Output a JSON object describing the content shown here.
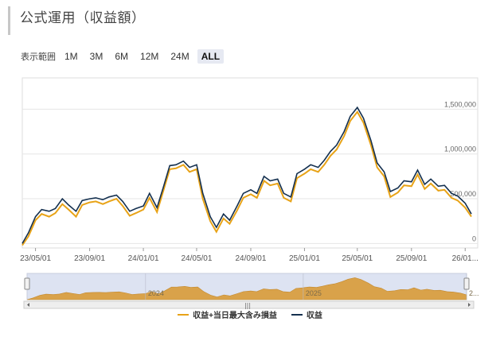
{
  "page": {
    "title": "公式運用（収益額）"
  },
  "range_selector": {
    "label": "表示範囲",
    "buttons": [
      {
        "label": "1M",
        "active": false
      },
      {
        "label": "3M",
        "active": false
      },
      {
        "label": "6M",
        "active": false
      },
      {
        "label": "12M",
        "active": false
      },
      {
        "label": "24M",
        "active": false
      },
      {
        "label": "ALL",
        "active": true
      }
    ]
  },
  "colors": {
    "profit_line": "#14304f",
    "profit_with_loss_line": "#e8a317",
    "navigator_fill": "#d9a24a",
    "navigator_bg": "#dde3f2",
    "grid": "#e6e6e6"
  },
  "legend": [
    {
      "name": "収益+当日最大含み損益",
      "color": "#e8a317"
    },
    {
      "name": "収益",
      "color": "#14304f"
    }
  ],
  "navigator": {
    "labels": [
      "2024",
      "2025",
      "2..."
    ]
  },
  "chart_data": {
    "type": "line",
    "title": "",
    "xlabel": "",
    "ylabel": "",
    "x_ticks": [
      "23/05/01",
      "23/09/01",
      "24/01/01",
      "24/05/01",
      "24/09/01",
      "25/01/01",
      "25/05/01",
      "25/09/01",
      "26/01..."
    ],
    "y_ticks": [
      "0",
      "500,000",
      "1,000,000",
      "1,500,000"
    ],
    "ylim": [
      -50000,
      1850000
    ],
    "grid": true,
    "x": [
      "2023-04-01",
      "2023-04-15",
      "2023-05-01",
      "2023-05-15",
      "2023-06-01",
      "2023-06-15",
      "2023-07-01",
      "2023-07-15",
      "2023-08-01",
      "2023-08-15",
      "2023-09-01",
      "2023-09-15",
      "2023-10-01",
      "2023-10-15",
      "2023-11-01",
      "2023-11-15",
      "2023-12-01",
      "2023-12-15",
      "2024-01-01",
      "2024-01-15",
      "2024-02-01",
      "2024-02-15",
      "2024-03-01",
      "2024-03-15",
      "2024-04-01",
      "2024-04-15",
      "2024-05-01",
      "2024-05-15",
      "2024-06-01",
      "2024-06-15",
      "2024-07-01",
      "2024-07-15",
      "2024-08-01",
      "2024-08-15",
      "2024-09-01",
      "2024-09-15",
      "2024-10-01",
      "2024-10-15",
      "2024-11-01",
      "2024-11-15",
      "2024-12-01",
      "2024-12-15",
      "2025-01-01",
      "2025-01-15",
      "2025-02-01",
      "2025-02-15",
      "2025-03-01",
      "2025-03-15",
      "2025-04-01",
      "2025-04-15",
      "2025-05-01",
      "2025-05-15",
      "2025-06-01",
      "2025-06-15",
      "2025-07-01",
      "2025-07-15",
      "2025-08-01",
      "2025-08-15",
      "2025-09-01",
      "2025-09-15",
      "2025-10-01",
      "2025-10-15",
      "2025-11-01",
      "2025-11-15",
      "2025-12-01",
      "2025-12-15",
      "2026-01-01",
      "2026-01-15"
    ],
    "series": [
      {
        "name": "収益",
        "values": [
          0,
          120000,
          300000,
          380000,
          360000,
          390000,
          500000,
          430000,
          360000,
          480000,
          500000,
          510000,
          490000,
          520000,
          540000,
          470000,
          360000,
          390000,
          420000,
          560000,
          400000,
          620000,
          870000,
          880000,
          920000,
          850000,
          880000,
          560000,
          300000,
          180000,
          330000,
          260000,
          420000,
          560000,
          600000,
          560000,
          750000,
          700000,
          720000,
          560000,
          520000,
          780000,
          830000,
          880000,
          850000,
          930000,
          1030000,
          1100000,
          1250000,
          1420000,
          1520000,
          1400000,
          1150000,
          900000,
          800000,
          580000,
          620000,
          700000,
          690000,
          820000,
          660000,
          720000,
          640000,
          650000,
          560000,
          530000,
          450000,
          330000
        ]
      },
      {
        "name": "収益+当日最大含み損益",
        "values": [
          -20000,
          80000,
          260000,
          330000,
          300000,
          340000,
          440000,
          380000,
          300000,
          430000,
          460000,
          470000,
          440000,
          470000,
          500000,
          420000,
          310000,
          340000,
          380000,
          510000,
          350000,
          580000,
          830000,
          840000,
          880000,
          800000,
          830000,
          500000,
          250000,
          130000,
          280000,
          220000,
          370000,
          510000,
          550000,
          510000,
          700000,
          650000,
          670000,
          510000,
          470000,
          730000,
          780000,
          830000,
          800000,
          880000,
          980000,
          1050000,
          1200000,
          1370000,
          1470000,
          1350000,
          1100000,
          850000,
          750000,
          520000,
          570000,
          650000,
          640000,
          770000,
          610000,
          670000,
          590000,
          600000,
          510000,
          480000,
          400000,
          300000
        ]
      }
    ]
  }
}
